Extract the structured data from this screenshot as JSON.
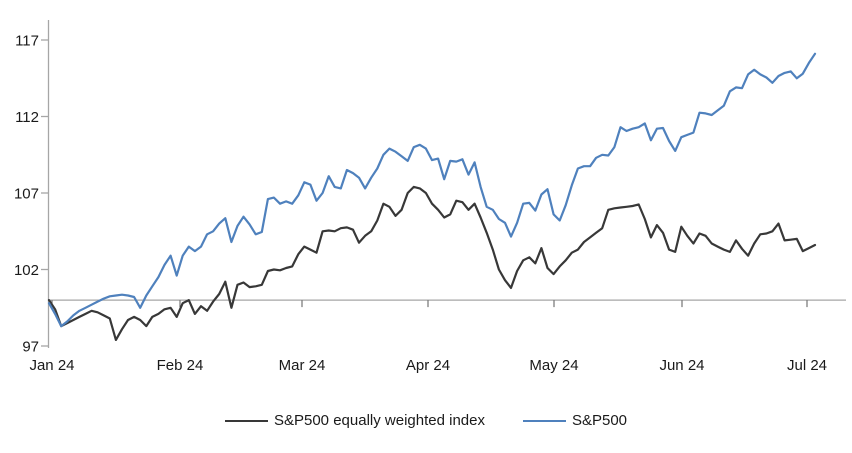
{
  "chart_data": {
    "type": "line",
    "title": "",
    "x_tick_labels": [
      "Jan 24",
      "Feb 24",
      "Mar 24",
      "Apr 24",
      "May 24",
      "Jun 24",
      "Jul 24"
    ],
    "y_tick_labels": [
      "97",
      "102",
      "107",
      "112",
      "117"
    ],
    "y_axis": {
      "min": 97,
      "max": 117,
      "step": 5
    },
    "baseline_value": 100,
    "grid": "off",
    "legend_position": "bottom",
    "series": [
      {
        "name": "S&P500 equally weighted index",
        "color": "#383838",
        "values": [
          100.0,
          99.4,
          98.3,
          98.5,
          98.7,
          98.9,
          99.1,
          99.3,
          99.2,
          99.0,
          98.8,
          97.4,
          98.1,
          98.7,
          98.9,
          98.7,
          98.3,
          98.9,
          99.1,
          99.4,
          99.5,
          98.9,
          99.8,
          100.0,
          99.1,
          99.6,
          99.3,
          99.9,
          100.4,
          101.2,
          99.5,
          101.0,
          101.15,
          100.85,
          100.9,
          101.0,
          101.9,
          102.0,
          101.95,
          102.1,
          102.2,
          103.0,
          103.5,
          103.3,
          103.1,
          104.5,
          104.55,
          104.5,
          104.7,
          104.75,
          104.6,
          103.75,
          104.2,
          104.5,
          105.2,
          106.3,
          106.1,
          105.5,
          105.9,
          107.0,
          107.4,
          107.3,
          107.0,
          106.3,
          105.9,
          105.4,
          105.6,
          106.5,
          106.4,
          105.9,
          106.3,
          105.4,
          104.4,
          103.3,
          102.0,
          101.3,
          100.8,
          101.9,
          102.6,
          102.8,
          102.4,
          103.4,
          102.1,
          101.7,
          102.2,
          102.6,
          103.1,
          103.3,
          103.8,
          104.1,
          104.4,
          104.7,
          105.9,
          106.0,
          106.05,
          106.1,
          106.15,
          106.25,
          105.3,
          104.1,
          104.9,
          104.4,
          103.3,
          103.15,
          104.8,
          104.2,
          103.7,
          104.35,
          104.2,
          103.7,
          103.5,
          103.3,
          103.15,
          103.9,
          103.35,
          102.9,
          103.7,
          104.3,
          104.35,
          104.5,
          105.0,
          103.9,
          103.95,
          104.0,
          103.2,
          103.4,
          103.6
        ]
      },
      {
        "name": "S&P500",
        "color": "#4f81bd",
        "values": [
          99.8,
          99.1,
          98.3,
          98.6,
          99.0,
          99.3,
          99.5,
          99.7,
          99.9,
          100.1,
          100.25,
          100.3,
          100.35,
          100.3,
          100.2,
          99.5,
          100.3,
          100.9,
          101.5,
          102.3,
          102.9,
          101.6,
          102.9,
          103.5,
          103.2,
          103.5,
          104.3,
          104.5,
          105.0,
          105.35,
          103.8,
          104.85,
          105.45,
          104.95,
          104.3,
          104.45,
          106.6,
          106.7,
          106.3,
          106.45,
          106.3,
          106.85,
          107.7,
          107.55,
          106.5,
          107.0,
          108.1,
          107.4,
          107.3,
          108.5,
          108.3,
          108.0,
          107.3,
          108.0,
          108.6,
          109.5,
          109.9,
          109.7,
          109.4,
          109.1,
          110.0,
          110.15,
          109.9,
          109.15,
          109.25,
          107.9,
          109.1,
          109.05,
          109.2,
          108.2,
          109.0,
          107.4,
          106.1,
          105.9,
          105.3,
          105.05,
          104.15,
          105.05,
          106.3,
          106.35,
          105.85,
          106.9,
          107.25,
          105.6,
          105.2,
          106.2,
          107.5,
          108.6,
          108.75,
          108.75,
          109.3,
          109.5,
          109.45,
          110.0,
          111.3,
          111.05,
          111.2,
          111.3,
          111.55,
          110.45,
          111.2,
          111.25,
          110.4,
          109.75,
          110.65,
          110.8,
          110.95,
          112.25,
          112.2,
          112.1,
          112.4,
          112.7,
          113.65,
          113.9,
          113.85,
          114.75,
          115.05,
          114.75,
          114.55,
          114.2,
          114.65,
          114.85,
          114.95,
          114.5,
          114.8,
          115.5,
          116.1
        ]
      }
    ]
  },
  "colors": {
    "background": "#ffffff",
    "axis": "#a6a6a6",
    "tick": "#737373",
    "text": "#1a1a1a"
  }
}
